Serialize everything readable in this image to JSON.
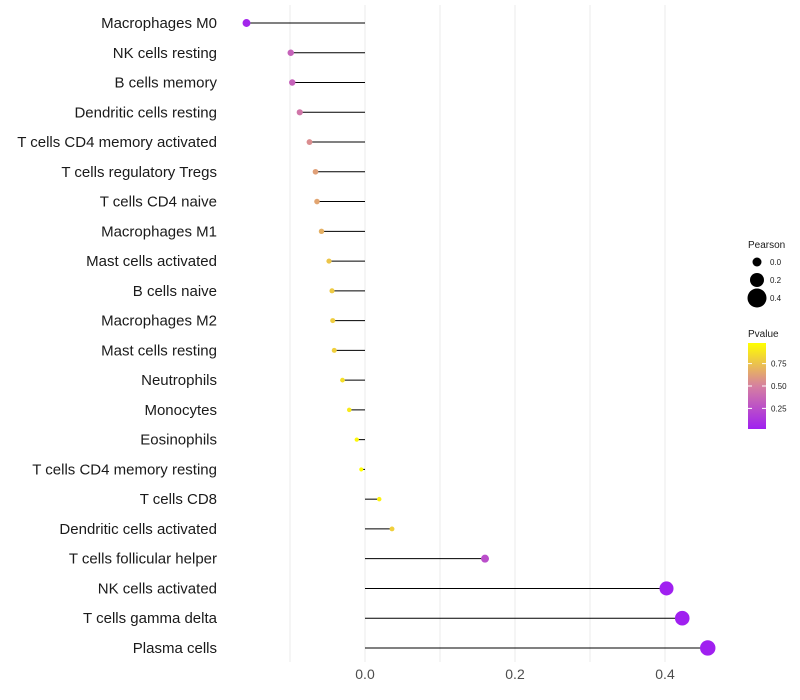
{
  "chart_data": {
    "type": "lollipop",
    "orientation": "horizontal",
    "xlabel": "",
    "ylabel": "",
    "xlim": [
      -0.16,
      0.48
    ],
    "xticks": [
      0.0,
      0.2,
      0.4
    ],
    "xtick_labels": [
      "0.0",
      "0.2",
      "0.4"
    ],
    "categories": [
      "Macrophages M0",
      "NK cells resting",
      "B cells memory",
      "Dendritic cells resting",
      "T cells CD4 memory activated",
      "T cells regulatory  Tregs ",
      "T cells CD4 naive",
      "Macrophages M1",
      "Mast cells activated",
      "B cells naive",
      "Macrophages M2",
      "Mast cells resting",
      "Neutrophils",
      "Monocytes",
      "Eosinophils",
      "T cells CD4 memory resting",
      "T cells CD8",
      "Dendritic cells activated",
      "T cells follicular helper",
      "NK cells activated",
      "T cells gamma delta",
      "Plasma cells"
    ],
    "pearson": [
      -0.158,
      -0.099,
      -0.097,
      -0.087,
      -0.074,
      -0.066,
      -0.064,
      -0.058,
      -0.048,
      -0.044,
      -0.043,
      -0.041,
      -0.03,
      -0.021,
      -0.011,
      -0.005,
      0.019,
      0.036,
      0.16,
      0.402,
      0.423,
      0.457
    ],
    "pvalue": [
      0.05,
      0.35,
      0.35,
      0.45,
      0.55,
      0.62,
      0.64,
      0.68,
      0.76,
      0.78,
      0.79,
      0.8,
      0.86,
      0.9,
      0.95,
      0.98,
      0.93,
      0.8,
      0.25,
      0.02,
      0.01,
      0.01
    ],
    "legends": {
      "size": {
        "title": "Pearson",
        "values": [
          0.0,
          0.2,
          0.4
        ],
        "labels": [
          "0.0",
          "0.2",
          "0.4"
        ]
      },
      "color": {
        "title": "Pvalue",
        "range": [
          0.02,
          0.98
        ],
        "ticks": [
          0.25,
          0.5,
          0.75
        ],
        "tick_labels": [
          "0.25",
          "0.50",
          "0.75"
        ],
        "low_color": "#a020f0",
        "mid_color": "#d680a0",
        "high_color": "#ffff00"
      }
    },
    "grid": true,
    "legend_position": "right"
  }
}
